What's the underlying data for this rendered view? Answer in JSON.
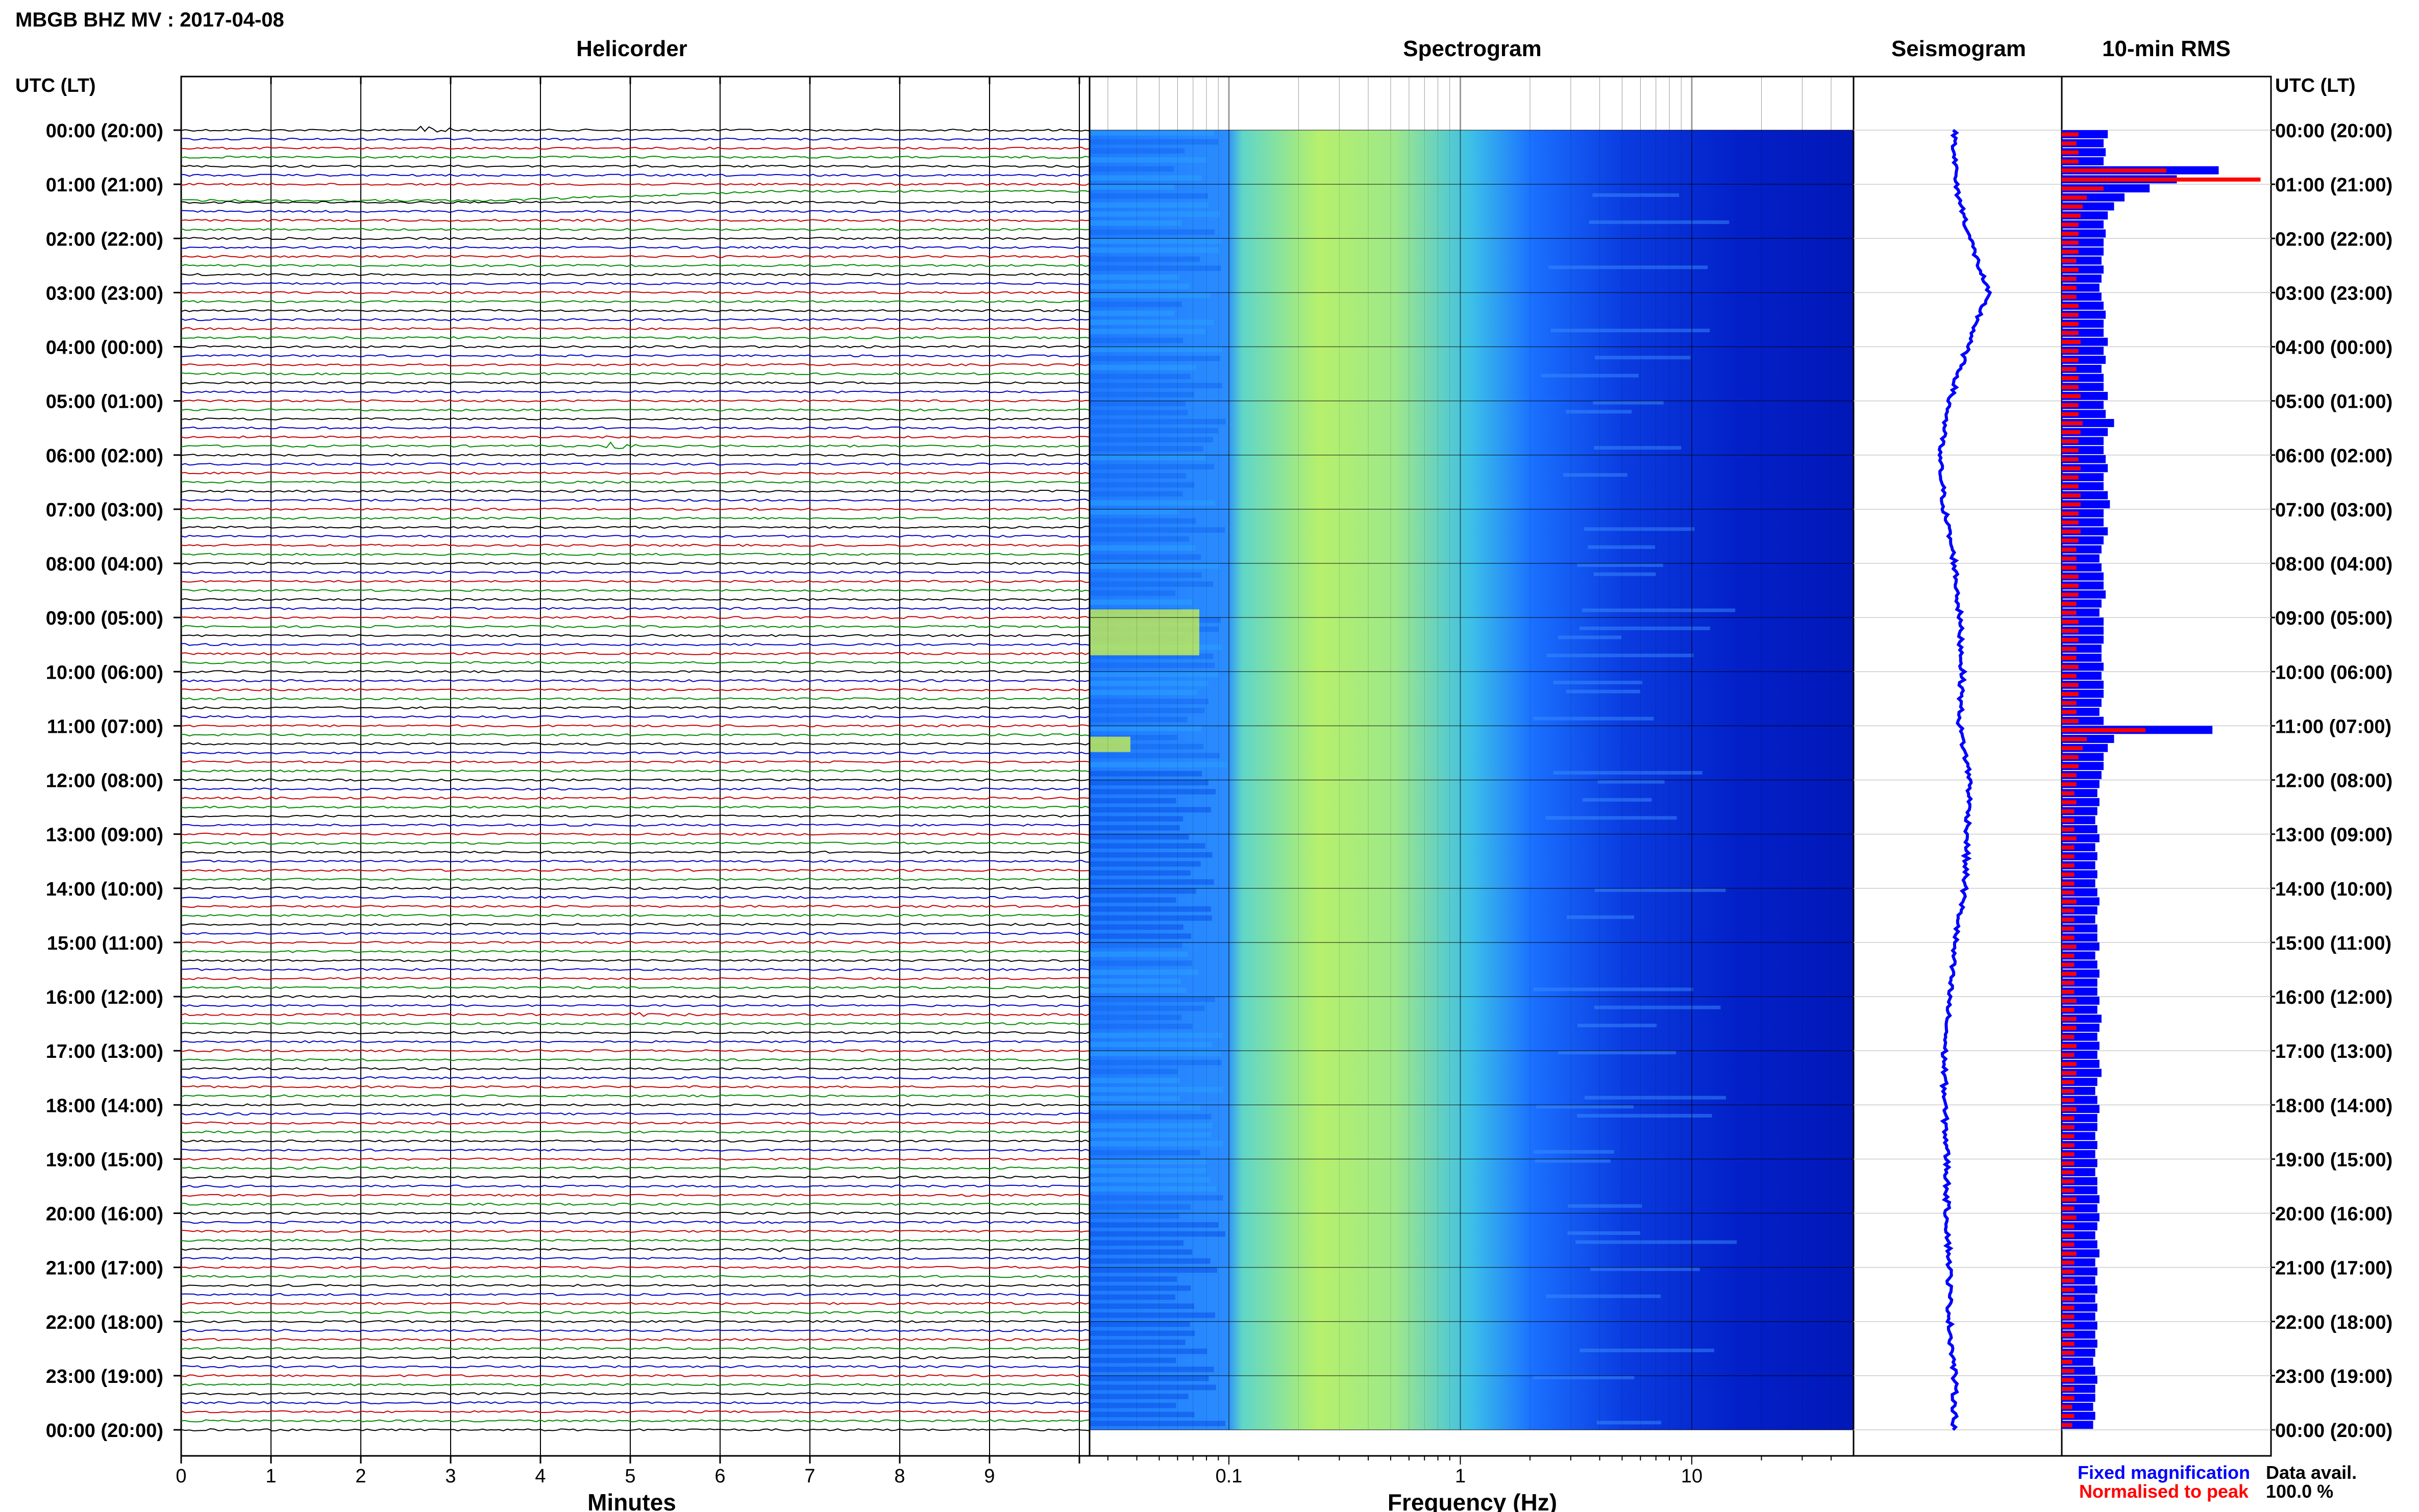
{
  "header": {
    "station_title": "MBGB BHZ MV : 2017-04-08"
  },
  "panels": {
    "helicorder": "Helicorder",
    "spectrogram": "Spectrogram",
    "seismogram": "Seismogram",
    "rms": "10-min RMS"
  },
  "axes": {
    "left_time_label": "UTC (LT)",
    "right_time_label": "UTC (LT)",
    "helicorder_xlabel": "Minutes",
    "spectrogram_xlabel": "Frequency (Hz)"
  },
  "legend": {
    "fixed": "Fixed magnification",
    "normalised": "Normalised to peak",
    "data_avail_label": "Data avail.",
    "data_avail_value": "100.0 %"
  },
  "colors": {
    "trace_cycle": [
      "#000000",
      "#0000c8",
      "#c80000",
      "#008c00"
    ],
    "fixed": "#0000ff",
    "normalised": "#ff0000"
  },
  "chart_data": {
    "type": "helicorder",
    "time_labels": [
      "00:00 (20:00)",
      "01:00 (21:00)",
      "02:00 (22:00)",
      "03:00 (23:00)",
      "04:00 (00:00)",
      "05:00 (01:00)",
      "06:00 (02:00)",
      "07:00 (03:00)",
      "08:00 (04:00)",
      "09:00 (05:00)",
      "10:00 (06:00)",
      "11:00 (07:00)",
      "12:00 (08:00)",
      "13:00 (09:00)",
      "14:00 (10:00)",
      "15:00 (11:00)",
      "16:00 (12:00)",
      "17:00 (13:00)",
      "18:00 (14:00)",
      "19:00 (15:00)",
      "20:00 (16:00)",
      "21:00 (17:00)",
      "22:00 (18:00)",
      "23:00 (19:00)",
      "00:00 (20:00)"
    ],
    "minutes_ticks": [
      "0",
      "1",
      "2",
      "3",
      "4",
      "5",
      "6",
      "7",
      "8",
      "9"
    ],
    "freq_ticks": [
      "0.1",
      "1",
      "10"
    ],
    "freq_range_hz": [
      0.025,
      50
    ],
    "events_min_hhmm": [
      {
        "time": "00:00",
        "minute": 2.7,
        "amp": 1.0
      },
      {
        "time": "05:50",
        "minute": 4.8,
        "amp": 0.6
      },
      {
        "time": "16:20",
        "minute": 5.1,
        "amp": 0.35
      },
      {
        "time": "20:40",
        "minute": 6.6,
        "amp": 0.25
      }
    ],
    "rms_fixed": [
      0.22,
      0.2,
      0.21,
      0.2,
      0.75,
      0.55,
      0.42,
      0.3,
      0.25,
      0.22,
      0.2,
      0.21,
      0.2,
      0.2,
      0.19,
      0.2,
      0.19,
      0.18,
      0.19,
      0.2,
      0.21,
      0.2,
      0.2,
      0.22,
      0.2,
      0.21,
      0.19,
      0.2,
      0.2,
      0.22,
      0.2,
      0.21,
      0.25,
      0.22,
      0.2,
      0.2,
      0.21,
      0.22,
      0.2,
      0.2,
      0.22,
      0.23,
      0.2,
      0.2,
      0.22,
      0.2,
      0.19,
      0.18,
      0.19,
      0.2,
      0.2,
      0.21,
      0.19,
      0.18,
      0.2,
      0.2,
      0.2,
      0.19,
      0.19,
      0.2,
      0.19,
      0.2,
      0.2,
      0.19,
      0.18,
      0.2,
      0.72,
      0.25,
      0.22,
      0.2,
      0.2,
      0.19,
      0.18,
      0.17,
      0.18,
      0.17,
      0.16,
      0.17,
      0.18,
      0.16,
      0.17,
      0.16,
      0.17,
      0.16,
      0.17,
      0.18,
      0.17,
      0.16,
      0.17,
      0.17,
      0.18,
      0.16,
      0.17,
      0.18,
      0.17,
      0.17,
      0.18,
      0.17,
      0.19,
      0.18,
      0.17,
      0.18,
      0.17,
      0.18,
      0.19,
      0.17,
      0.16,
      0.17,
      0.18,
      0.17,
      0.17,
      0.16,
      0.17,
      0.16,
      0.17,
      0.16,
      0.17,
      0.17,
      0.18,
      0.17,
      0.18,
      0.17,
      0.16,
      0.17,
      0.18,
      0.16,
      0.17,
      0.16,
      0.17,
      0.16,
      0.17,
      0.16,
      0.17,
      0.16,
      0.17,
      0.16,
      0.15,
      0.16,
      0.17,
      0.16,
      0.16,
      0.15,
      0.16,
      0.15
    ],
    "rms_normalised": [
      0.08,
      0.07,
      0.08,
      0.08,
      0.5,
      0.95,
      0.2,
      0.12,
      0.1,
      0.09,
      0.08,
      0.08,
      0.08,
      0.08,
      0.07,
      0.08,
      0.07,
      0.07,
      0.07,
      0.08,
      0.08,
      0.08,
      0.08,
      0.09,
      0.08,
      0.08,
      0.07,
      0.08,
      0.08,
      0.09,
      0.08,
      0.08,
      0.1,
      0.09,
      0.08,
      0.08,
      0.08,
      0.09,
      0.08,
      0.08,
      0.09,
      0.09,
      0.08,
      0.08,
      0.09,
      0.08,
      0.07,
      0.07,
      0.07,
      0.08,
      0.08,
      0.08,
      0.07,
      0.07,
      0.08,
      0.08,
      0.08,
      0.07,
      0.07,
      0.08,
      0.07,
      0.08,
      0.08,
      0.07,
      0.07,
      0.08,
      0.4,
      0.12,
      0.1,
      0.08,
      0.08,
      0.07,
      0.07,
      0.06,
      0.07,
      0.06,
      0.06,
      0.06,
      0.07,
      0.06,
      0.06,
      0.06,
      0.06,
      0.06,
      0.06,
      0.07,
      0.06,
      0.06,
      0.06,
      0.06,
      0.07,
      0.06,
      0.06,
      0.07,
      0.06,
      0.06,
      0.07,
      0.06,
      0.07,
      0.07,
      0.06,
      0.07,
      0.06,
      0.07,
      0.07,
      0.06,
      0.06,
      0.06,
      0.07,
      0.06,
      0.06,
      0.06,
      0.06,
      0.06,
      0.06,
      0.06,
      0.06,
      0.06,
      0.07,
      0.06,
      0.07,
      0.06,
      0.06,
      0.06,
      0.07,
      0.06,
      0.06,
      0.06,
      0.06,
      0.06,
      0.06,
      0.06,
      0.06,
      0.06,
      0.06,
      0.06,
      0.05,
      0.06,
      0.06,
      0.06,
      0.06,
      0.05,
      0.06,
      0.05
    ]
  }
}
